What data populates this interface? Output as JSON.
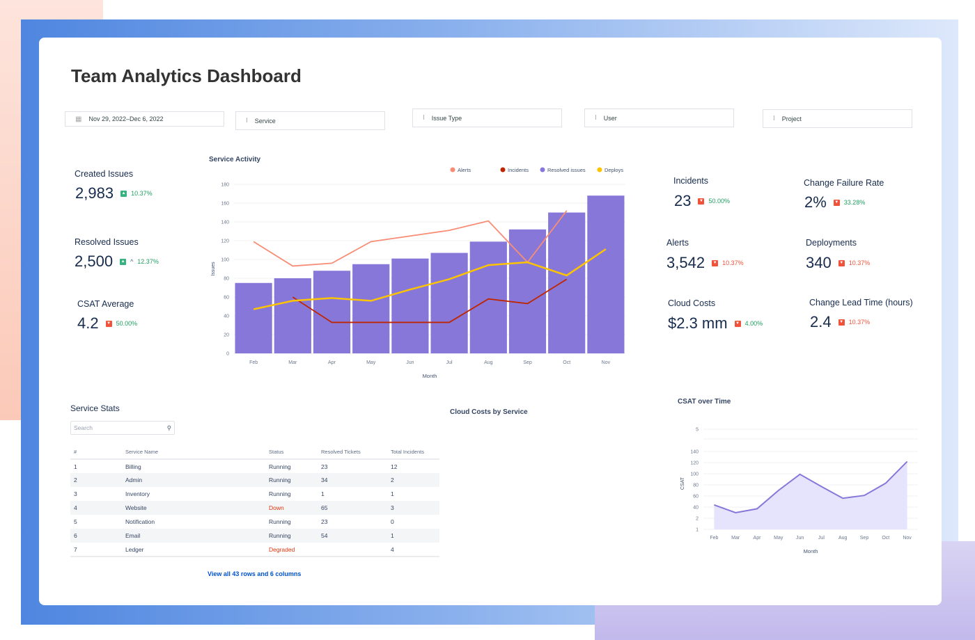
{
  "title": "Team Analytics Dashboard",
  "filters": {
    "date": "Nov 29, 2022–Dec 6, 2022",
    "service": "Service",
    "issue_type": "Issue Type",
    "user": "User",
    "project": "Project"
  },
  "kpis": {
    "created": {
      "label": "Created Issues",
      "value": "2,983",
      "change": "10.37%",
      "direction": "up"
    },
    "resolved": {
      "label": "Resolved Issues",
      "value": "2,500",
      "change": "12.37%",
      "direction": "up"
    },
    "csat": {
      "label": "CSAT Average",
      "value": "4.2",
      "change": "50.00%",
      "direction": "down"
    },
    "incidents": {
      "label": "Incidents",
      "value": "23",
      "change": "50.00%",
      "direction": "down"
    },
    "cfr": {
      "label": "Change Failure Rate",
      "value": "2%",
      "change": "33.28%",
      "direction": "down"
    },
    "alerts": {
      "label": "Alerts",
      "value": "3,542",
      "change": "10.37%",
      "direction": "down"
    },
    "deployments": {
      "label": "Deployments",
      "value": "340",
      "change": "10.37%",
      "direction": "down"
    },
    "cloud": {
      "label": "Cloud Costs",
      "value": "$2.3 mm",
      "change": "4.00%",
      "direction": "down"
    },
    "lead": {
      "label": "Change Lead Time (hours)",
      "value": "2.4",
      "change": "10.37%",
      "direction": "down"
    }
  },
  "colors": {
    "green": "#1f9d60",
    "red": "#f0533a",
    "bar": "#8777d9",
    "alerts": "#f88d76",
    "incidents": "#bf2600",
    "deploys": "#ffc400"
  },
  "service_stats": {
    "title": "Service Stats",
    "search_placeholder": "Search",
    "columns": [
      "#",
      "Service Name",
      "Status",
      "Resolved Tickets",
      "Total Incidents"
    ],
    "rows": [
      [
        "1",
        "Billing",
        "Running",
        "23",
        "12"
      ],
      [
        "2",
        "Admin",
        "Running",
        "34",
        "2"
      ],
      [
        "3",
        "Inventory",
        "Running",
        "1",
        "1"
      ],
      [
        "4",
        "Website",
        "Down",
        "65",
        "3"
      ],
      [
        "5",
        "Notification",
        "Running",
        "23",
        "0"
      ],
      [
        "6",
        "Email",
        "Running",
        "54",
        "1"
      ],
      [
        "7",
        "Ledger",
        "Degraded",
        "",
        "4"
      ]
    ],
    "view_all": "View all 43 rows and 6 columns"
  },
  "cloud_costs_title": "Cloud Costs by Service",
  "chart_data": [
    {
      "type": "bar",
      "title": "Service Activity",
      "xlabel": "Month",
      "ylabel": "Issues",
      "ylim": [
        0,
        180
      ],
      "yticks": [
        0,
        20,
        40,
        60,
        80,
        100,
        120,
        140,
        160,
        180
      ],
      "grid": true,
      "legend": "top-right",
      "categories": [
        "Feb",
        "Mar",
        "Apr",
        "May",
        "Jun",
        "Jul",
        "Aug",
        "Sep",
        "Oct",
        "Nov"
      ],
      "series": [
        {
          "name": "Resolved issues",
          "kind": "bar",
          "color": "#8777d9",
          "values": [
            75,
            80,
            88,
            95,
            101,
            107,
            119,
            132,
            150,
            168
          ]
        },
        {
          "name": "Alerts",
          "kind": "line",
          "color": "#f88d76",
          "values": [
            119,
            93,
            96,
            119,
            125,
            131,
            141,
            97,
            152,
            null
          ]
        },
        {
          "name": "Incidents",
          "kind": "line",
          "color": "#bf2600",
          "values": [
            null,
            60,
            33,
            33,
            33,
            33,
            58,
            53,
            79,
            null
          ]
        },
        {
          "name": "Deploys",
          "kind": "line",
          "color": "#ffc400",
          "values": [
            47,
            56,
            59,
            56,
            68,
            79,
            94,
            97,
            83,
            111
          ]
        }
      ]
    },
    {
      "type": "area",
      "title": "CSAT over Time",
      "xlabel": "Month",
      "ylabel": "CSAT",
      "grid": true,
      "yticks": [
        "1",
        "2",
        "40",
        "60",
        "80",
        "100",
        "120",
        "140",
        "",
        "5"
      ],
      "categories": [
        "Feb",
        "Mar",
        "Apr",
        "May",
        "Jun",
        "Jul",
        "Aug",
        "Sep",
        "Oct",
        "Nov"
      ],
      "values": [
        44,
        30,
        37,
        70,
        99,
        77,
        56,
        61,
        83,
        122
      ]
    }
  ]
}
